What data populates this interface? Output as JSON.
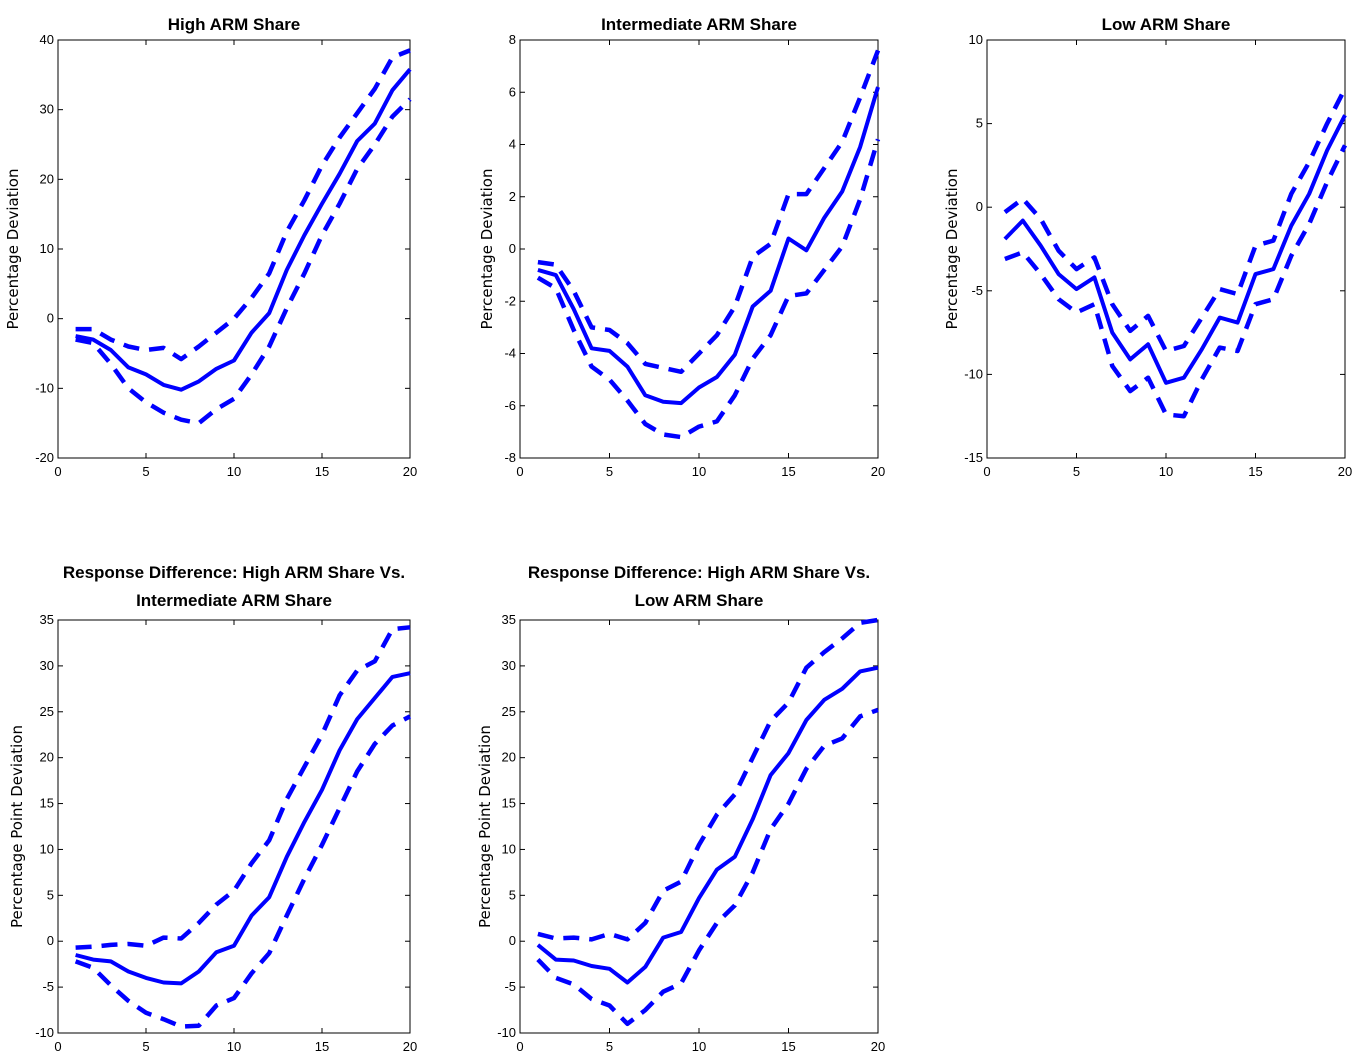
{
  "figure": {
    "line_color": "#0000ff",
    "axis_color": "#000000",
    "background": "#ffffff"
  },
  "chart_data": [
    {
      "type": "line",
      "title": [
        "High ARM Share"
      ],
      "xlabel": "",
      "ylabel": "Percentage Deviation",
      "xlim": [
        0,
        20
      ],
      "ylim": [
        -20,
        40
      ],
      "xticks": [
        0,
        5,
        10,
        15,
        20
      ],
      "yticks": [
        -20,
        -10,
        0,
        10,
        20,
        30,
        40
      ],
      "x": [
        1,
        2,
        3,
        4,
        5,
        6,
        7,
        8,
        9,
        10,
        11,
        12,
        13,
        14,
        15,
        16,
        17,
        18,
        19,
        20
      ],
      "series": [
        {
          "style": "solid",
          "values": [
            -2.5,
            -3,
            -4.5,
            -7,
            -8,
            -9.5,
            -10.2,
            -9,
            -7.2,
            -6,
            -2,
            0.8,
            7,
            12,
            16.5,
            20.8,
            25.5,
            28,
            32.8,
            35.8
          ]
        },
        {
          "style": "dashed",
          "values": [
            -1.5,
            -1.5,
            -3,
            -4,
            -4.5,
            -4.2,
            -5.8,
            -4,
            -2,
            0,
            3,
            6.5,
            12.5,
            17,
            22,
            26,
            29.5,
            33,
            37.5,
            38.5
          ]
        },
        {
          "style": "dashed",
          "values": [
            -3,
            -3.5,
            -6.5,
            -10,
            -12,
            -13.5,
            -14.5,
            -15,
            -13,
            -11.5,
            -8,
            -4,
            1.5,
            6.5,
            12,
            16.5,
            21.5,
            25,
            29,
            31.5
          ]
        }
      ]
    },
    {
      "type": "line",
      "title": [
        "Intermediate ARM Share"
      ],
      "xlabel": "",
      "ylabel": "Percentage Deviation",
      "xlim": [
        0,
        20
      ],
      "ylim": [
        -8,
        8
      ],
      "xticks": [
        0,
        5,
        10,
        15,
        20
      ],
      "yticks": [
        -8,
        -6,
        -4,
        -2,
        0,
        2,
        4,
        6,
        8
      ],
      "x": [
        1,
        2,
        3,
        4,
        5,
        6,
        7,
        8,
        9,
        10,
        11,
        12,
        13,
        14,
        15,
        16,
        17,
        18,
        19,
        20
      ],
      "series": [
        {
          "style": "solid",
          "values": [
            -0.8,
            -1,
            -2.3,
            -3.8,
            -3.9,
            -4.5,
            -5.6,
            -5.85,
            -5.9,
            -5.3,
            -4.9,
            -4.05,
            -2.2,
            -1.6,
            0.4,
            -0.05,
            1.2,
            2.2,
            3.9,
            6.2
          ]
        },
        {
          "style": "dashed",
          "values": [
            -0.5,
            -0.6,
            -1.6,
            -3,
            -3.1,
            -3.6,
            -4.4,
            -4.55,
            -4.7,
            -4,
            -3.3,
            -2.2,
            -0.3,
            0.2,
            2.1,
            2.1,
            3.1,
            4.1,
            5.8,
            7.6
          ]
        },
        {
          "style": "dashed",
          "values": [
            -1.1,
            -1.5,
            -3.1,
            -4.5,
            -5,
            -5.8,
            -6.7,
            -7.1,
            -7.2,
            -6.8,
            -6.6,
            -5.6,
            -4.2,
            -3.3,
            -1.8,
            -1.7,
            -0.8,
            0.1,
            1.9,
            4.2
          ]
        }
      ]
    },
    {
      "type": "line",
      "title": [
        "Low ARM Share"
      ],
      "xlabel": "",
      "ylabel": "Percentage Deviation",
      "xlim": [
        0,
        20
      ],
      "ylim": [
        -15,
        10
      ],
      "xticks": [
        0,
        5,
        10,
        15,
        20
      ],
      "yticks": [
        -15,
        -10,
        -5,
        0,
        5,
        10
      ],
      "x": [
        1,
        2,
        3,
        4,
        5,
        6,
        7,
        8,
        9,
        10,
        11,
        12,
        13,
        14,
        15,
        16,
        17,
        18,
        19,
        20
      ],
      "series": [
        {
          "style": "solid",
          "values": [
            -1.9,
            -0.8,
            -2.3,
            -4,
            -4.9,
            -4.2,
            -7.5,
            -9.1,
            -8.2,
            -10.5,
            -10.2,
            -8.5,
            -6.6,
            -6.9,
            -4,
            -3.7,
            -1.1,
            0.8,
            3.4,
            5.5
          ]
        },
        {
          "style": "dashed",
          "values": [
            -0.3,
            0.5,
            -0.7,
            -2.6,
            -3.7,
            -3,
            -5.8,
            -7.4,
            -6.5,
            -8.6,
            -8.3,
            -6.6,
            -4.9,
            -5.2,
            -2.3,
            -2,
            0.8,
            2.7,
            5,
            7.1
          ]
        },
        {
          "style": "dashed",
          "values": [
            -3.1,
            -2.7,
            -4,
            -5.5,
            -6.3,
            -5.8,
            -9.5,
            -11,
            -10.2,
            -12.4,
            -12.5,
            -10.3,
            -8.4,
            -8.6,
            -5.8,
            -5.5,
            -2.9,
            -1,
            1.5,
            3.7
          ]
        }
      ]
    },
    {
      "type": "line",
      "title": [
        "Response Difference: High ARM Share Vs.",
        "Intermediate ARM Share"
      ],
      "xlabel": "",
      "ylabel": "Percentage Point Deviation",
      "xlim": [
        0,
        20
      ],
      "ylim": [
        -10,
        35
      ],
      "xticks": [
        0,
        5,
        10,
        15,
        20
      ],
      "yticks": [
        -10,
        -5,
        0,
        5,
        10,
        15,
        20,
        25,
        30,
        35
      ],
      "x": [
        1,
        2,
        3,
        4,
        5,
        6,
        7,
        8,
        9,
        10,
        11,
        12,
        13,
        14,
        15,
        16,
        17,
        18,
        19,
        20
      ],
      "series": [
        {
          "style": "solid",
          "values": [
            -1.5,
            -2,
            -2.2,
            -3.3,
            -4,
            -4.5,
            -4.6,
            -3.3,
            -1.2,
            -0.5,
            2.8,
            4.8,
            9.2,
            13,
            16.5,
            20.8,
            24.2,
            26.5,
            28.8,
            29.2
          ]
        },
        {
          "style": "dashed",
          "values": [
            -0.7,
            -0.6,
            -0.4,
            -0.3,
            -0.5,
            0.4,
            0.3,
            2,
            4,
            5.5,
            8.5,
            11,
            15.5,
            19,
            22.5,
            26.8,
            29.5,
            30.5,
            34,
            34.2
          ]
        },
        {
          "style": "dashed",
          "values": [
            -2.2,
            -2.9,
            -4.8,
            -6.5,
            -7.8,
            -8.5,
            -9.3,
            -9.2,
            -7,
            -6.2,
            -3.5,
            -1.3,
            2.8,
            6.8,
            10.5,
            14.5,
            18.5,
            21.5,
            23.5,
            24.5
          ]
        }
      ]
    },
    {
      "type": "line",
      "title": [
        "Response Difference: High ARM Share Vs.",
        "Low ARM Share"
      ],
      "xlabel": "",
      "ylabel": "Percentage Point Deviation",
      "xlim": [
        0,
        20
      ],
      "ylim": [
        -10,
        35
      ],
      "xticks": [
        0,
        5,
        10,
        15,
        20
      ],
      "yticks": [
        -10,
        -5,
        0,
        5,
        10,
        15,
        20,
        25,
        30,
        35
      ],
      "x": [
        1,
        2,
        3,
        4,
        5,
        6,
        7,
        8,
        9,
        10,
        11,
        12,
        13,
        14,
        15,
        16,
        17,
        18,
        19,
        20
      ],
      "series": [
        {
          "style": "solid",
          "values": [
            -0.4,
            -2,
            -2.1,
            -2.7,
            -3,
            -4.5,
            -2.8,
            0.4,
            1,
            4.7,
            7.8,
            9.2,
            13.3,
            18.1,
            20.5,
            24.1,
            26.3,
            27.5,
            29.4,
            29.8
          ]
        },
        {
          "style": "dashed",
          "values": [
            0.8,
            0.3,
            0.4,
            0.2,
            0.8,
            0.2,
            2,
            5.5,
            6.5,
            10.5,
            13.8,
            16,
            20,
            24,
            26,
            29.8,
            31.5,
            33,
            34.7,
            35
          ]
        },
        {
          "style": "dashed",
          "values": [
            -2,
            -4,
            -4.7,
            -6.3,
            -7,
            -9,
            -7.5,
            -5.5,
            -4.6,
            -1,
            2,
            3.9,
            7.5,
            12.2,
            15,
            18.8,
            21.3,
            22.1,
            24.5,
            25.2
          ]
        }
      ]
    }
  ]
}
